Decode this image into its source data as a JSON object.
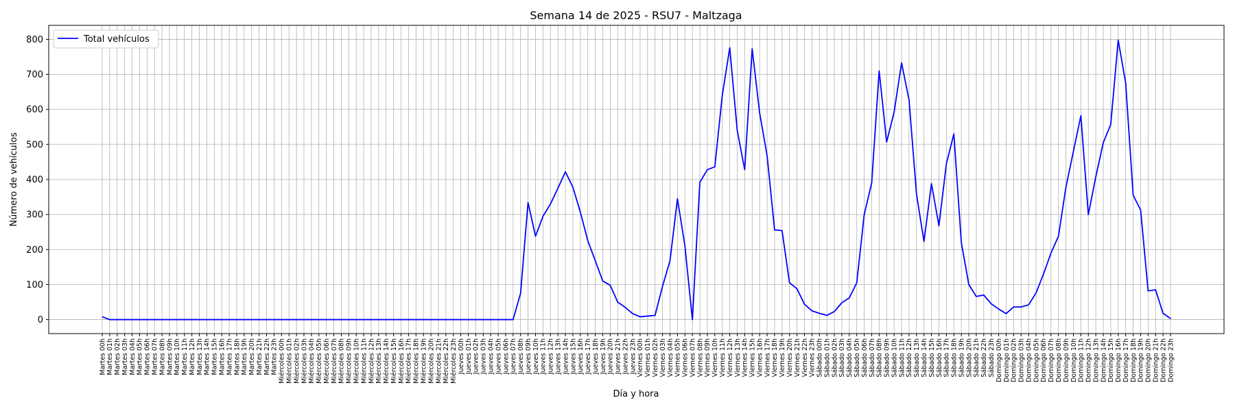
{
  "chart_data": {
    "type": "line",
    "title": "Semana 14 de 2025 - RSU7 - Maltzaga",
    "xlabel": "Día y hora",
    "ylabel": "Número de vehículos",
    "ylim": [
      -40,
      840
    ],
    "yticks": [
      0,
      100,
      200,
      300,
      400,
      500,
      600,
      700,
      800
    ],
    "grid": true,
    "legend": "top-left",
    "series_color": "#0000ff",
    "categories": [
      "Martes 00h",
      "Martes 01h",
      "Martes 02h",
      "Martes 03h",
      "Martes 04h",
      "Martes 05h",
      "Martes 06h",
      "Martes 07h",
      "Martes 08h",
      "Martes 09h",
      "Martes 10h",
      "Martes 11h",
      "Martes 12h",
      "Martes 13h",
      "Martes 14h",
      "Martes 15h",
      "Martes 16h",
      "Martes 17h",
      "Martes 18h",
      "Martes 19h",
      "Martes 20h",
      "Martes 21h",
      "Martes 22h",
      "Martes 23h",
      "Miércoles 00h",
      "Miércoles 01h",
      "Miércoles 02h",
      "Miércoles 03h",
      "Miércoles 04h",
      "Miércoles 05h",
      "Miércoles 06h",
      "Miércoles 07h",
      "Miércoles 08h",
      "Miércoles 09h",
      "Miércoles 10h",
      "Miércoles 11h",
      "Miércoles 12h",
      "Miércoles 13h",
      "Miércoles 14h",
      "Miércoles 15h",
      "Miércoles 16h",
      "Miércoles 17h",
      "Miércoles 18h",
      "Miércoles 19h",
      "Miércoles 20h",
      "Miércoles 21h",
      "Miércoles 22h",
      "Miércoles 23h",
      "Jueves 00h",
      "Jueves 01h",
      "Jueves 02h",
      "Jueves 03h",
      "Jueves 04h",
      "Jueves 05h",
      "Jueves 06h",
      "Jueves 07h",
      "Jueves 08h",
      "Jueves 09h",
      "Jueves 10h",
      "Jueves 11h",
      "Jueves 12h",
      "Jueves 13h",
      "Jueves 14h",
      "Jueves 15h",
      "Jueves 16h",
      "Jueves 17h",
      "Jueves 18h",
      "Jueves 19h",
      "Jueves 20h",
      "Jueves 21h",
      "Jueves 22h",
      "Jueves 23h",
      "Viernes 00h",
      "Viernes 01h",
      "Viernes 02h",
      "Viernes 03h",
      "Viernes 04h",
      "Viernes 05h",
      "Viernes 06h",
      "Viernes 07h",
      "Viernes 08h",
      "Viernes 09h",
      "Viernes 10h",
      "Viernes 11h",
      "Viernes 12h",
      "Viernes 13h",
      "Viernes 14h",
      "Viernes 15h",
      "Viernes 16h",
      "Viernes 17h",
      "Viernes 18h",
      "Viernes 19h",
      "Viernes 20h",
      "Viernes 21h",
      "Viernes 22h",
      "Viernes 23h",
      "Sábado 00h",
      "Sábado 01h",
      "Sábado 02h",
      "Sábado 03h",
      "Sábado 04h",
      "Sábado 05h",
      "Sábado 06h",
      "Sábado 07h",
      "Sábado 08h",
      "Sábado 09h",
      "Sábado 10h",
      "Sábado 11h",
      "Sábado 12h",
      "Sábado 13h",
      "Sábado 14h",
      "Sábado 15h",
      "Sábado 16h",
      "Sábado 17h",
      "Sábado 18h",
      "Sábado 19h",
      "Sábado 20h",
      "Sábado 21h",
      "Sábado 22h",
      "Sábado 23h",
      "Domingo 00h",
      "Domingo 01h",
      "Domingo 02h",
      "Domingo 03h",
      "Domingo 04h",
      "Domingo 05h",
      "Domingo 06h",
      "Domingo 07h",
      "Domingo 08h",
      "Domingo 09h",
      "Domingo 10h",
      "Domingo 11h",
      "Domingo 12h",
      "Domingo 13h",
      "Domingo 14h",
      "Domingo 15h",
      "Domingo 16h",
      "Domingo 17h",
      "Domingo 18h",
      "Domingo 19h",
      "Domingo 20h",
      "Domingo 21h",
      "Domingo 22h",
      "Domingo 23h"
    ],
    "series": [
      {
        "name": "Total vehículos",
        "values": [
          8,
          0,
          0,
          0,
          0,
          0,
          0,
          0,
          0,
          0,
          0,
          0,
          0,
          0,
          0,
          0,
          0,
          0,
          0,
          0,
          0,
          0,
          0,
          0,
          0,
          0,
          0,
          0,
          0,
          0,
          0,
          0,
          0,
          0,
          0,
          0,
          0,
          0,
          0,
          0,
          0,
          0,
          0,
          0,
          0,
          0,
          0,
          0,
          0,
          0,
          0,
          0,
          0,
          0,
          0,
          0,
          75,
          334,
          238,
          295,
          330,
          375,
          422,
          378,
          307,
          225,
          168,
          110,
          98,
          50,
          35,
          17,
          8,
          10,
          12,
          95,
          168,
          345,
          210,
          0,
          392,
          428,
          436,
          640,
          776,
          540,
          428,
          773,
          590,
          468,
          256,
          254,
          105,
          88,
          44,
          25,
          18,
          12,
          23,
          48,
          62,
          105,
          300,
          390,
          710,
          507,
          592,
          733,
          627,
          358,
          223,
          388,
          268,
          445,
          530,
          220,
          100,
          66,
          70,
          45,
          30,
          17,
          36,
          36,
          42,
          76,
          130,
          190,
          238,
          378,
          480,
          582,
          300,
          408,
          505,
          557,
          798,
          675,
          355,
          313,
          82,
          85,
          18,
          3
        ]
      }
    ]
  }
}
